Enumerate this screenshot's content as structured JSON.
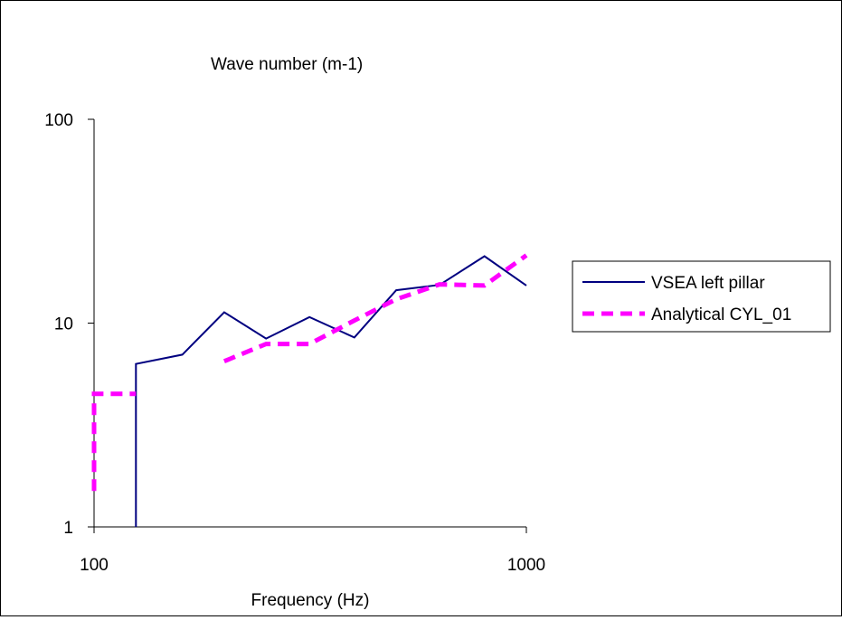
{
  "chart_data": {
    "type": "line",
    "title": "Wave number (m-1)",
    "xlabel": "Frequency (Hz)",
    "ylabel": "",
    "x_scale": "log",
    "y_scale": "log",
    "xlim": [
      100,
      1000
    ],
    "ylim": [
      1,
      100
    ],
    "x_ticks": [
      "100",
      "1000"
    ],
    "y_ticks": [
      "1",
      "10",
      "100"
    ],
    "grid": false,
    "legend_position": "right",
    "series": [
      {
        "name": "VSEA left pillar",
        "color": "#000080",
        "style": "solid",
        "x": [
          125,
          125,
          160,
          200,
          250,
          315,
          400,
          500,
          630,
          800,
          1000
        ],
        "y": [
          1,
          6.3,
          7.0,
          11.3,
          8.4,
          10.7,
          8.5,
          14.5,
          15.4,
          21.3,
          15.3
        ]
      },
      {
        "name": "Analytical CYL_01",
        "color": "#ff00ff",
        "style": "dashed",
        "segments": [
          {
            "x": [
              100,
              100,
              125
            ],
            "y": [
              1.5,
              4.5,
              4.5
            ]
          },
          {
            "x": [
              200,
              250,
              315,
              400,
              500,
              630,
              800,
              1000
            ],
            "y": [
              6.5,
              7.9,
              7.9,
              10.3,
              13.1,
              15.5,
              15.3,
              21.5
            ]
          }
        ]
      }
    ]
  }
}
